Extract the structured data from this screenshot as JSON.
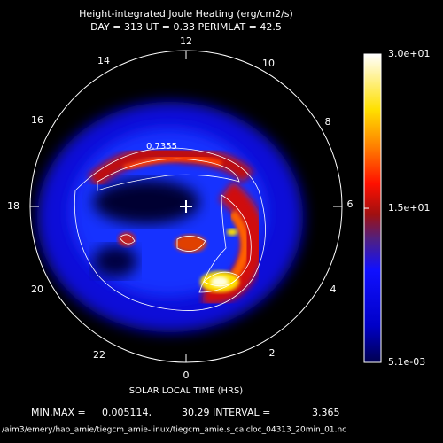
{
  "title": "Height-integrated Joule Heating (erg/cm2/s)",
  "subtitle": "DAY = 313  UT =  0.33  PERIMLAT =  42.5",
  "hours": [
    "12",
    "10",
    "8",
    "6",
    "4",
    "2",
    "0",
    "22",
    "20",
    "18",
    "16",
    "14"
  ],
  "contour_label": "0.7355",
  "axis_label": "SOLAR LOCAL TIME (HRS)",
  "colorbar": {
    "ticks": [
      {
        "value": 0.0051,
        "label": "5.1e-03"
      },
      {
        "value": 15,
        "label": "1.5e+01"
      },
      {
        "value": 30,
        "label": "3.0e+01"
      }
    ]
  },
  "footer": {
    "minmax_label": "MIN,MAX =",
    "min": "0.005114,",
    "max_interval": "30.29 INTERVAL =",
    "interval": "3.365"
  },
  "path": "/aim3/emery/hao_amie/tiegcm_amie-linux/tiegcm_amie.s_calcloc_04313_20min_01.nc"
}
